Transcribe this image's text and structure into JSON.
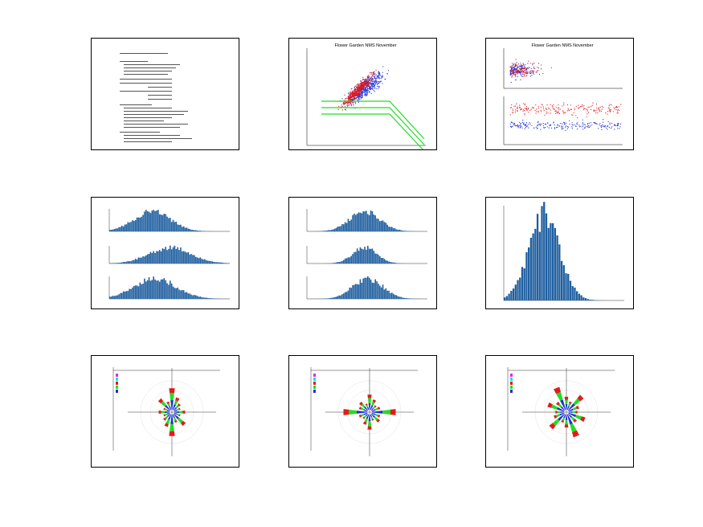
{
  "page": {
    "panels": [
      {
        "id": "p1",
        "kind": "document",
        "title": ""
      },
      {
        "id": "p2",
        "kind": "scatter",
        "title": "Flower Garden NMS November"
      },
      {
        "id": "p3",
        "kind": "scatter-dual",
        "title": "Flower Garden NMS November"
      },
      {
        "id": "p4",
        "kind": "histogram-stack",
        "title": ""
      },
      {
        "id": "p5",
        "kind": "histogram-stack",
        "title": ""
      },
      {
        "id": "p6",
        "kind": "histogram",
        "title": ""
      },
      {
        "id": "p7",
        "kind": "wind-rose",
        "title": ""
      },
      {
        "id": "p8",
        "kind": "wind-rose",
        "title": ""
      },
      {
        "id": "p9",
        "kind": "wind-rose",
        "title": ""
      }
    ],
    "colors": {
      "red": "#e41a1c",
      "blue": "#1f2fd6",
      "green": "#22dd22",
      "bar": "#1f5fa0",
      "magenta": "#ee22ee",
      "cyan": "#22dddd"
    }
  },
  "chart_data": [
    {
      "type": "scatter",
      "title": "Flower Garden NMS November",
      "xlim": [
        0,
        10
      ],
      "ylim": [
        0,
        18
      ],
      "series": [
        {
          "values": []
        },
        {
          "values": []
        }
      ],
      "note": "dense red and blue point clouds with three green fitted lines"
    },
    {
      "type": "scatter",
      "title": "Flower Garden NMS November",
      "series": [
        {
          "values": []
        },
        {
          "values": []
        }
      ]
    },
    {
      "type": "bar",
      "title": "",
      "categories": [],
      "values": []
    },
    {
      "type": "bar",
      "title": "",
      "categories": [],
      "values": []
    },
    {
      "type": "bar",
      "title": "",
      "categories": [],
      "values": []
    },
    {
      "type": "pie",
      "title": "",
      "categories": [],
      "values": []
    },
    {
      "type": "pie",
      "title": "",
      "categories": [],
      "values": []
    },
    {
      "type": "pie",
      "title": "",
      "categories": [],
      "values": []
    }
  ]
}
